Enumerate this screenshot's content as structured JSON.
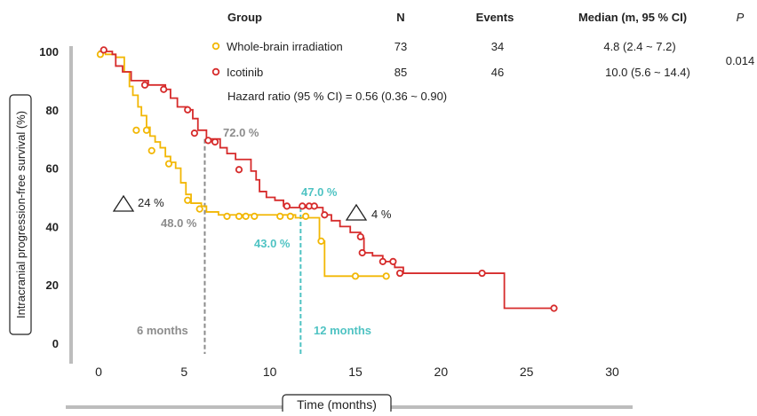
{
  "chart_data": {
    "type": "line",
    "xlabel": "Time (months)",
    "ylabel": "Intracranial progression-free survival (%)",
    "xlim": [
      0,
      30
    ],
    "ylim": [
      0,
      100
    ],
    "x_ticks": [
      "0",
      "5",
      "10",
      "15",
      "20",
      "25",
      "30"
    ],
    "y_ticks": [
      "0",
      "20",
      "40",
      "60",
      "80",
      "100"
    ],
    "grid": false,
    "colors": {
      "wbi": "#f2b705",
      "ico": "#d62b2b",
      "gray": "#8c8c8c",
      "teal": "#4fc3c3",
      "axis": "#bdbdbd"
    },
    "table": {
      "headers": {
        "group": "Group",
        "n": "N",
        "events": "Events",
        "median": "Median (m, 95 % CI)",
        "p": "P"
      },
      "rows": [
        {
          "group": "Whole-brain irradiation",
          "n": "73",
          "events": "34",
          "median": "4.8 (2.4 ~ 7.2)"
        },
        {
          "group": "Icotinib",
          "n": "85",
          "events": "46",
          "median": "10.0 (5.6 ~ 14.4)"
        }
      ],
      "p_value": "0.014",
      "hazard_ratio": "Hazard ratio (95 % CI) = 0.56 (0.36 ~ 0.90)"
    },
    "annotations": {
      "ico_6m": "72.0 %",
      "wbi_6m": "48.0 %",
      "ico_12m": "47.0 %",
      "wbi_12m": "43.0 %",
      "month6": "6 months",
      "month12": "12 months",
      "diff6": "24 %",
      "diff12": "4 %"
    },
    "series": [
      {
        "name": "Whole-brain irradiation",
        "steps": [
          [
            0,
            100
          ],
          [
            0.4,
            99
          ],
          [
            1.0,
            98
          ],
          [
            1.5,
            93
          ],
          [
            1.8,
            88
          ],
          [
            2.0,
            85
          ],
          [
            2.3,
            81
          ],
          [
            2.5,
            78
          ],
          [
            2.8,
            74
          ],
          [
            3.0,
            71
          ],
          [
            3.3,
            69
          ],
          [
            3.6,
            67
          ],
          [
            3.9,
            64
          ],
          [
            4.2,
            62
          ],
          [
            4.5,
            60
          ],
          [
            4.8,
            55
          ],
          [
            5.1,
            51
          ],
          [
            5.4,
            48
          ],
          [
            6.0,
            47
          ],
          [
            6.3,
            45
          ],
          [
            7.0,
            44
          ],
          [
            11.5,
            43
          ],
          [
            12.9,
            35
          ],
          [
            13.2,
            23
          ],
          [
            17.0,
            23
          ]
        ],
        "censored": [
          [
            0.1,
            99
          ],
          [
            2.2,
            73
          ],
          [
            2.8,
            73
          ],
          [
            3.1,
            66
          ],
          [
            4.1,
            61.5
          ],
          [
            5.2,
            49
          ],
          [
            5.9,
            46
          ],
          [
            7.5,
            43.5
          ],
          [
            8.2,
            43.5
          ],
          [
            8.6,
            43.5
          ],
          [
            9.1,
            43.5
          ],
          [
            10.6,
            43.5
          ],
          [
            11.2,
            43.5
          ],
          [
            12.1,
            43.5
          ],
          [
            13.0,
            35
          ],
          [
            15.0,
            23
          ],
          [
            16.8,
            23
          ]
        ]
      },
      {
        "name": "Icotinib",
        "steps": [
          [
            0,
            100
          ],
          [
            0.8,
            99
          ],
          [
            1.0,
            95
          ],
          [
            1.4,
            93
          ],
          [
            1.9,
            90
          ],
          [
            2.9,
            88.5
          ],
          [
            3.9,
            87
          ],
          [
            4.2,
            84
          ],
          [
            4.6,
            81
          ],
          [
            5.2,
            80
          ],
          [
            5.5,
            77
          ],
          [
            5.8,
            73
          ],
          [
            6.3,
            70
          ],
          [
            7.1,
            67
          ],
          [
            7.5,
            65
          ],
          [
            8.0,
            63
          ],
          [
            8.9,
            59
          ],
          [
            9.2,
            56
          ],
          [
            9.4,
            52
          ],
          [
            9.8,
            50
          ],
          [
            10.3,
            49
          ],
          [
            10.8,
            47
          ],
          [
            11.0,
            46.5
          ],
          [
            13.1,
            44
          ],
          [
            13.6,
            42
          ],
          [
            14.1,
            40
          ],
          [
            14.7,
            38
          ],
          [
            15.3,
            36
          ],
          [
            15.5,
            31
          ],
          [
            16.0,
            30
          ],
          [
            16.6,
            28
          ],
          [
            17.3,
            26
          ],
          [
            17.8,
            24
          ],
          [
            23.6,
            24
          ],
          [
            23.7,
            12
          ],
          [
            26.5,
            12
          ]
        ],
        "censored": [
          [
            0.3,
            100.5
          ],
          [
            2.7,
            88.5
          ],
          [
            3.8,
            87
          ],
          [
            5.2,
            80
          ],
          [
            5.6,
            72
          ],
          [
            6.4,
            69.5
          ],
          [
            6.8,
            69
          ],
          [
            8.2,
            59.5
          ],
          [
            11.0,
            47
          ],
          [
            11.9,
            47
          ],
          [
            12.3,
            47
          ],
          [
            12.6,
            47
          ],
          [
            13.2,
            44
          ],
          [
            15.3,
            36.5
          ],
          [
            15.4,
            31
          ],
          [
            16.6,
            28
          ],
          [
            17.2,
            28
          ],
          [
            17.6,
            24
          ],
          [
            22.4,
            24
          ],
          [
            26.6,
            12
          ]
        ]
      }
    ],
    "reference_lines": [
      {
        "x": 6.2,
        "y": 70,
        "color_key": "gray"
      },
      {
        "x": 11.8,
        "y": 46.5,
        "color_key": "teal"
      }
    ]
  }
}
